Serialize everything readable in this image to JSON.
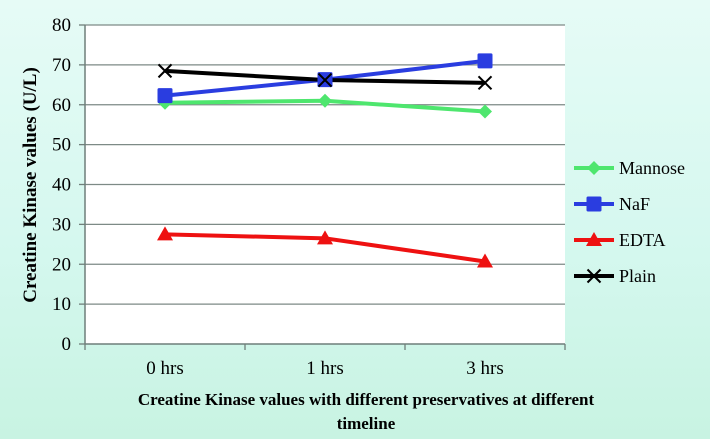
{
  "chart_data": {
    "type": "line",
    "title": "",
    "xlabel": "Creatine Kinase values with different preservatives at different timeline",
    "xlabel_lines": [
      "Creatine Kinase values with different preservatives at different",
      "timeline"
    ],
    "ylabel": "Creatine Kinase values (U/L)",
    "categories": [
      "0 hrs",
      "1 hrs",
      "3 hrs"
    ],
    "ylim": [
      0,
      80
    ],
    "yticks": [
      0,
      10,
      20,
      30,
      40,
      50,
      60,
      70,
      80
    ],
    "grid": true,
    "legend_position": "right",
    "series": [
      {
        "name": "Mannose",
        "color": "#4ee66e",
        "marker": "diamond",
        "values": [
          60.5,
          61.0,
          58.3
        ]
      },
      {
        "name": "NaF",
        "color": "#2a3de0",
        "marker": "square",
        "values": [
          62.3,
          66.3,
          71.0
        ]
      },
      {
        "name": "EDTA",
        "color": "#ee1111",
        "marker": "triangle",
        "values": [
          27.5,
          26.5,
          20.7
        ]
      },
      {
        "name": "Plain",
        "color": "#000000",
        "marker": "x",
        "values": [
          68.5,
          66.2,
          65.5
        ]
      }
    ]
  }
}
